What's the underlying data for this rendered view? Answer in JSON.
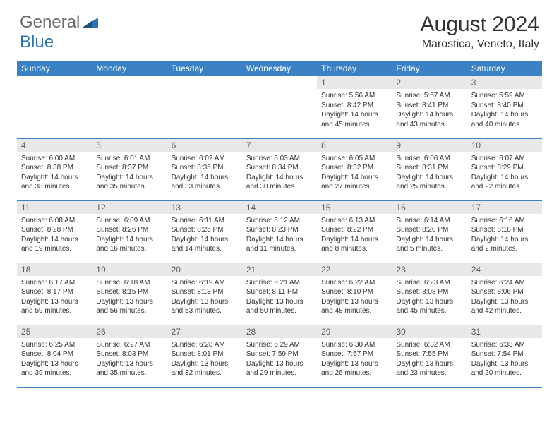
{
  "brand": {
    "part1": "General",
    "part2": "Blue"
  },
  "title": {
    "month": "August 2024",
    "location": "Marostica, Veneto, Italy"
  },
  "colors": {
    "header_bg": "#3b82c4",
    "header_text": "#ffffff",
    "daynum_bg": "#e8e8e8",
    "daynum_text": "#5a5a5a",
    "body_text": "#333333",
    "border": "#3b82c4",
    "logo_gray": "#6a6a6a",
    "logo_blue": "#2d72b5"
  },
  "daysOfWeek": [
    "Sunday",
    "Monday",
    "Tuesday",
    "Wednesday",
    "Thursday",
    "Friday",
    "Saturday"
  ],
  "layout": {
    "leadingEmpty": 4,
    "totalDays": 31,
    "columns": 7
  },
  "days": [
    {
      "n": "1",
      "sunrise": "Sunrise: 5:56 AM",
      "sunset": "Sunset: 8:42 PM",
      "daylight": "Daylight: 14 hours and 45 minutes."
    },
    {
      "n": "2",
      "sunrise": "Sunrise: 5:57 AM",
      "sunset": "Sunset: 8:41 PM",
      "daylight": "Daylight: 14 hours and 43 minutes."
    },
    {
      "n": "3",
      "sunrise": "Sunrise: 5:59 AM",
      "sunset": "Sunset: 8:40 PM",
      "daylight": "Daylight: 14 hours and 40 minutes."
    },
    {
      "n": "4",
      "sunrise": "Sunrise: 6:00 AM",
      "sunset": "Sunset: 8:38 PM",
      "daylight": "Daylight: 14 hours and 38 minutes."
    },
    {
      "n": "5",
      "sunrise": "Sunrise: 6:01 AM",
      "sunset": "Sunset: 8:37 PM",
      "daylight": "Daylight: 14 hours and 35 minutes."
    },
    {
      "n": "6",
      "sunrise": "Sunrise: 6:02 AM",
      "sunset": "Sunset: 8:35 PM",
      "daylight": "Daylight: 14 hours and 33 minutes."
    },
    {
      "n": "7",
      "sunrise": "Sunrise: 6:03 AM",
      "sunset": "Sunset: 8:34 PM",
      "daylight": "Daylight: 14 hours and 30 minutes."
    },
    {
      "n": "8",
      "sunrise": "Sunrise: 6:05 AM",
      "sunset": "Sunset: 8:32 PM",
      "daylight": "Daylight: 14 hours and 27 minutes."
    },
    {
      "n": "9",
      "sunrise": "Sunrise: 6:06 AM",
      "sunset": "Sunset: 8:31 PM",
      "daylight": "Daylight: 14 hours and 25 minutes."
    },
    {
      "n": "10",
      "sunrise": "Sunrise: 6:07 AM",
      "sunset": "Sunset: 8:29 PM",
      "daylight": "Daylight: 14 hours and 22 minutes."
    },
    {
      "n": "11",
      "sunrise": "Sunrise: 6:08 AM",
      "sunset": "Sunset: 8:28 PM",
      "daylight": "Daylight: 14 hours and 19 minutes."
    },
    {
      "n": "12",
      "sunrise": "Sunrise: 6:09 AM",
      "sunset": "Sunset: 8:26 PM",
      "daylight": "Daylight: 14 hours and 16 minutes."
    },
    {
      "n": "13",
      "sunrise": "Sunrise: 6:11 AM",
      "sunset": "Sunset: 8:25 PM",
      "daylight": "Daylight: 14 hours and 14 minutes."
    },
    {
      "n": "14",
      "sunrise": "Sunrise: 6:12 AM",
      "sunset": "Sunset: 8:23 PM",
      "daylight": "Daylight: 14 hours and 11 minutes."
    },
    {
      "n": "15",
      "sunrise": "Sunrise: 6:13 AM",
      "sunset": "Sunset: 8:22 PM",
      "daylight": "Daylight: 14 hours and 8 minutes."
    },
    {
      "n": "16",
      "sunrise": "Sunrise: 6:14 AM",
      "sunset": "Sunset: 8:20 PM",
      "daylight": "Daylight: 14 hours and 5 minutes."
    },
    {
      "n": "17",
      "sunrise": "Sunrise: 6:16 AM",
      "sunset": "Sunset: 8:18 PM",
      "daylight": "Daylight: 14 hours and 2 minutes."
    },
    {
      "n": "18",
      "sunrise": "Sunrise: 6:17 AM",
      "sunset": "Sunset: 8:17 PM",
      "daylight": "Daylight: 13 hours and 59 minutes."
    },
    {
      "n": "19",
      "sunrise": "Sunrise: 6:18 AM",
      "sunset": "Sunset: 8:15 PM",
      "daylight": "Daylight: 13 hours and 56 minutes."
    },
    {
      "n": "20",
      "sunrise": "Sunrise: 6:19 AM",
      "sunset": "Sunset: 8:13 PM",
      "daylight": "Daylight: 13 hours and 53 minutes."
    },
    {
      "n": "21",
      "sunrise": "Sunrise: 6:21 AM",
      "sunset": "Sunset: 8:11 PM",
      "daylight": "Daylight: 13 hours and 50 minutes."
    },
    {
      "n": "22",
      "sunrise": "Sunrise: 6:22 AM",
      "sunset": "Sunset: 8:10 PM",
      "daylight": "Daylight: 13 hours and 48 minutes."
    },
    {
      "n": "23",
      "sunrise": "Sunrise: 6:23 AM",
      "sunset": "Sunset: 8:08 PM",
      "daylight": "Daylight: 13 hours and 45 minutes."
    },
    {
      "n": "24",
      "sunrise": "Sunrise: 6:24 AM",
      "sunset": "Sunset: 8:06 PM",
      "daylight": "Daylight: 13 hours and 42 minutes."
    },
    {
      "n": "25",
      "sunrise": "Sunrise: 6:25 AM",
      "sunset": "Sunset: 8:04 PM",
      "daylight": "Daylight: 13 hours and 39 minutes."
    },
    {
      "n": "26",
      "sunrise": "Sunrise: 6:27 AM",
      "sunset": "Sunset: 8:03 PM",
      "daylight": "Daylight: 13 hours and 35 minutes."
    },
    {
      "n": "27",
      "sunrise": "Sunrise: 6:28 AM",
      "sunset": "Sunset: 8:01 PM",
      "daylight": "Daylight: 13 hours and 32 minutes."
    },
    {
      "n": "28",
      "sunrise": "Sunrise: 6:29 AM",
      "sunset": "Sunset: 7:59 PM",
      "daylight": "Daylight: 13 hours and 29 minutes."
    },
    {
      "n": "29",
      "sunrise": "Sunrise: 6:30 AM",
      "sunset": "Sunset: 7:57 PM",
      "daylight": "Daylight: 13 hours and 26 minutes."
    },
    {
      "n": "30",
      "sunrise": "Sunrise: 6:32 AM",
      "sunset": "Sunset: 7:55 PM",
      "daylight": "Daylight: 13 hours and 23 minutes."
    },
    {
      "n": "31",
      "sunrise": "Sunrise: 6:33 AM",
      "sunset": "Sunset: 7:54 PM",
      "daylight": "Daylight: 13 hours and 20 minutes."
    }
  ]
}
